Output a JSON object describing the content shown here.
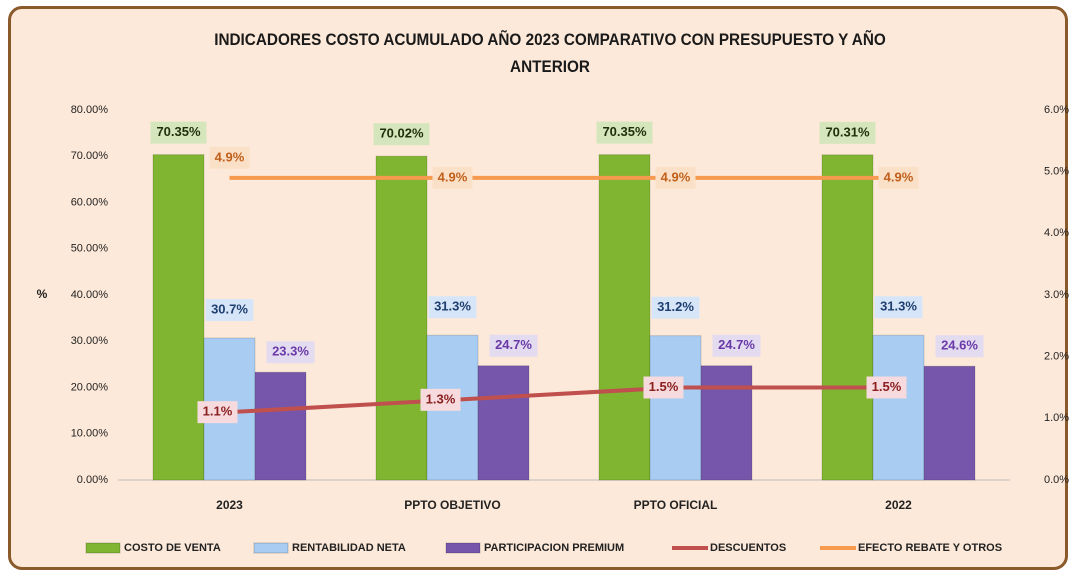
{
  "chart_data": {
    "type": "bar",
    "title": "INDICADORES COSTO ACUMULADO AÑO 2023 COMPARATIVO CON PRESUPUESTO Y AÑO ANTERIOR",
    "ylabel": "%",
    "categories": [
      "2023",
      "PPTO OBJETIVO",
      "PPTO OFICIAL",
      "2022"
    ],
    "ylim": [
      0,
      80
    ],
    "yticks": [
      {
        "value": 0,
        "label": "0.00%"
      },
      {
        "value": 10,
        "label": "10.00%"
      },
      {
        "value": 20,
        "label": "20.00%"
      },
      {
        "value": 30,
        "label": "30.00%"
      },
      {
        "value": 40,
        "label": "40.00%"
      },
      {
        "value": 50,
        "label": "50.00%"
      },
      {
        "value": 60,
        "label": "60.00%"
      },
      {
        "value": 70,
        "label": "70.00%"
      },
      {
        "value": 80,
        "label": "80.00%"
      }
    ],
    "y2lim": [
      0,
      6
    ],
    "y2ticks": [
      {
        "value": 0,
        "label": "0.0%"
      },
      {
        "value": 1,
        "label": "1.0%"
      },
      {
        "value": 2,
        "label": "2.0%"
      },
      {
        "value": 3,
        "label": "3.0%"
      },
      {
        "value": 4,
        "label": "4.0%"
      },
      {
        "value": 5,
        "label": "5.0%"
      },
      {
        "value": 6,
        "label": "6.0%"
      }
    ],
    "legend": "bottom",
    "series": [
      {
        "name": "COSTO DE VENTA",
        "type": "bar",
        "color": "#7fb530",
        "values": [
          70.35,
          70.02,
          70.35,
          70.31
        ],
        "value_labels": [
          "70.35%",
          "70.02%",
          "70.35%",
          "70.31%"
        ]
      },
      {
        "name": "RENTABILIDAD NETA",
        "type": "bar",
        "color": "#a8ccf2",
        "values": [
          30.7,
          31.3,
          31.2,
          31.3
        ],
        "value_labels": [
          "30.7%",
          "31.3%",
          "31.2%",
          "31.3%"
        ]
      },
      {
        "name": "PARTICIPACION PREMIUM",
        "type": "bar",
        "color": "#7656ab",
        "values": [
          23.3,
          24.7,
          24.7,
          24.6
        ],
        "value_labels": [
          "23.3%",
          "24.7%",
          "24.7%",
          "24.6%"
        ]
      },
      {
        "name": "DESCUENTOS",
        "type": "line",
        "axis": "y2",
        "color": "#c0504d",
        "values": [
          1.1,
          1.3,
          1.5,
          1.5
        ],
        "value_labels": [
          "1.1%",
          "1.3%",
          "1.5%",
          "1.5%"
        ]
      },
      {
        "name": "EFECTO REBATE Y OTROS",
        "type": "line",
        "axis": "y2",
        "color": "#f59a4f",
        "values": [
          4.9,
          4.9,
          4.9,
          4.9
        ],
        "value_labels": [
          "4.9%",
          "4.9%",
          "4.9%",
          "4.9%"
        ]
      }
    ]
  }
}
